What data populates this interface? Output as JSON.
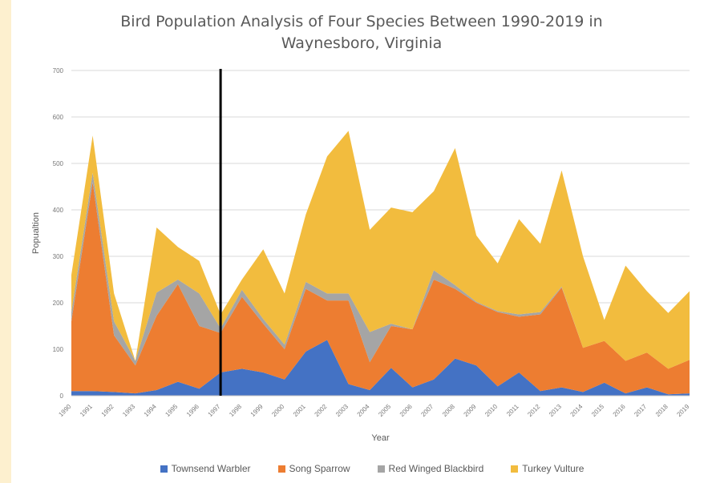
{
  "chart_data": {
    "type": "area",
    "stacked": true,
    "title_line1": "Bird Population Analysis of Four Species Between 1990-2019 in",
    "title_line2": "Waynesboro, Virginia",
    "xlabel": "Year",
    "ylabel": "Popualtion",
    "ylim": [
      0,
      700
    ],
    "yticks": [
      "0",
      "100",
      "200",
      "300",
      "400",
      "500",
      "600",
      "700"
    ],
    "grid": true,
    "legend_position": "bottom",
    "marker_year": "1997",
    "categories": [
      "1990",
      "1991",
      "1992",
      "1993",
      "1994",
      "1995",
      "1996",
      "1997",
      "1998",
      "1999",
      "2000",
      "2001",
      "2002",
      "2003",
      "2004",
      "2005",
      "2006",
      "2007",
      "2008",
      "2009",
      "2010",
      "2011",
      "2012",
      "2013",
      "2014",
      "2015",
      "2016",
      "2017",
      "2018",
      "2019"
    ],
    "series": [
      {
        "name": "Townsend Warbler",
        "color": "#4472c4",
        "values": [
          10,
          10,
          8,
          5,
          12,
          30,
          15,
          50,
          58,
          50,
          35,
          95,
          120,
          25,
          12,
          60,
          18,
          35,
          80,
          65,
          20,
          50,
          10,
          18,
          8,
          28,
          5,
          18,
          3,
          5
        ]
      },
      {
        "name": "Song Sparrow",
        "color": "#ed7d31",
        "values": [
          150,
          450,
          122,
          60,
          160,
          210,
          135,
          85,
          155,
          105,
          65,
          135,
          85,
          180,
          60,
          90,
          125,
          215,
          150,
          135,
          160,
          120,
          165,
          215,
          95,
          90,
          70,
          75,
          55,
          72
        ]
      },
      {
        "name": "Red Winged Blackbird",
        "color": "#a5a5a5",
        "values": [
          20,
          20,
          30,
          10,
          50,
          10,
          70,
          10,
          15,
          10,
          10,
          15,
          15,
          15,
          65,
          5,
          0,
          20,
          8,
          2,
          2,
          5,
          5,
          2,
          0,
          0,
          0,
          0,
          0,
          0
        ]
      },
      {
        "name": "Turkey Vulture",
        "color": "#f2bc3e",
        "values": [
          80,
          80,
          60,
          0,
          140,
          70,
          70,
          30,
          22,
          150,
          110,
          145,
          295,
          350,
          220,
          250,
          252,
          170,
          295,
          143,
          103,
          205,
          147,
          250,
          197,
          45,
          205,
          132,
          120,
          148
        ]
      }
    ],
    "legend": [
      "Townsend Warbler",
      "Song Sparrow",
      "Red Winged Blackbird",
      "Turkey Vulture"
    ]
  }
}
